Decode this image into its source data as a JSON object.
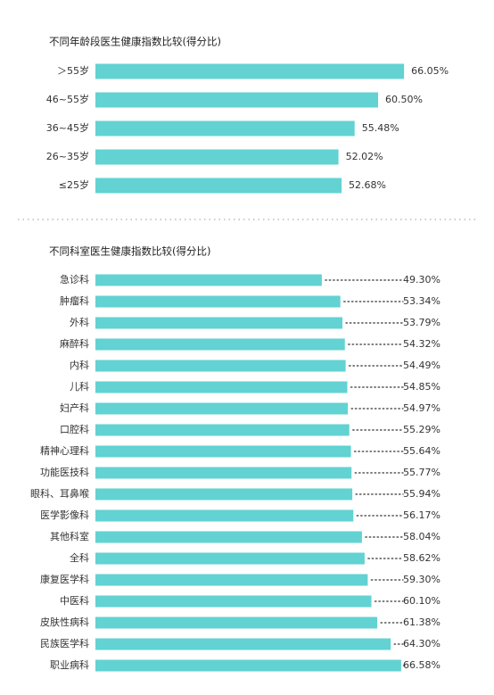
{
  "chart_data": [
    {
      "type": "bar",
      "orientation": "horizontal",
      "title": "不同年龄段医生健康指数比较(得分比)",
      "color": "#62d2d2",
      "categories": [
        "＞55岁",
        "46~55岁",
        "36~45岁",
        "26~35岁",
        "≤25岁"
      ],
      "values": [
        66.05,
        60.5,
        55.48,
        52.02,
        52.68
      ],
      "value_labels": [
        "66.05%",
        "60.50%",
        "55.48%",
        "52.02%",
        "52.68%"
      ]
    },
    {
      "type": "bar",
      "orientation": "horizontal",
      "title": "不同科室医生健康指数比较(得分比)",
      "color": "#62d2d2",
      "leader_dots": true,
      "categories": [
        "急诊科",
        "肿瘤科",
        "外科",
        "麻醉科",
        "内科",
        "儿科",
        "妇产科",
        "口腔科",
        "精神心理科",
        "功能医技科",
        "眼科、耳鼻喉",
        "医学影像科",
        "其他科室",
        "全科",
        "康复医学科",
        "中医科",
        "皮肤性病科",
        "民族医学科",
        "职业病科"
      ],
      "values": [
        49.3,
        53.34,
        53.79,
        54.32,
        54.49,
        54.85,
        54.97,
        55.29,
        55.64,
        55.77,
        55.94,
        56.17,
        58.04,
        58.62,
        59.3,
        60.1,
        61.38,
        64.3,
        66.58
      ],
      "value_labels": [
        "49.30%",
        "53.34%",
        "53.79%",
        "54.32%",
        "54.49%",
        "54.85%",
        "54.97%",
        "55.29%",
        "55.64%",
        "55.77%",
        "55.94%",
        "56.17%",
        "58.04%",
        "58.62%",
        "59.30%",
        "60.10%",
        "61.38%",
        "64.30%",
        "66.58%"
      ]
    }
  ]
}
